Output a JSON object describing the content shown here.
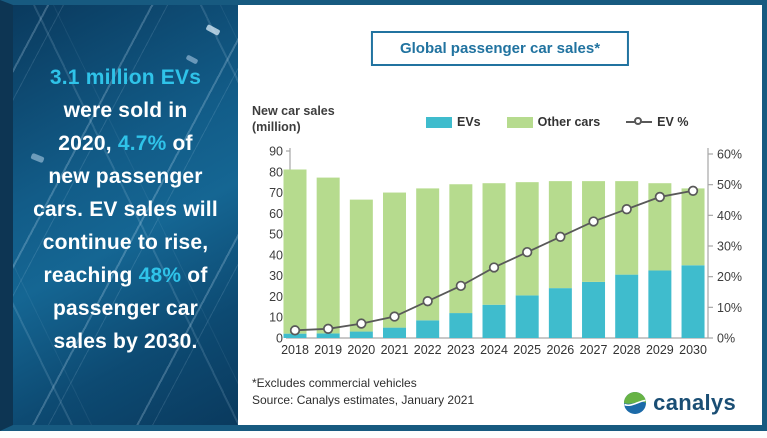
{
  "panel": {
    "accent_color": "#2fc3e9",
    "text_color": "#ffffff",
    "lines": [
      [
        {
          "text": "3.1 million EVs",
          "accent": true
        }
      ],
      [
        {
          "text": "were sold in"
        }
      ],
      [
        {
          "text": "2020, "
        },
        {
          "text": "4.7%",
          "accent": true
        },
        {
          "text": " of"
        }
      ],
      [
        {
          "text": "new passenger"
        }
      ],
      [
        {
          "text": "cars. EV sales will"
        }
      ],
      [
        {
          "text": "continue to rise,"
        }
      ],
      [
        {
          "text": "reaching "
        },
        {
          "text": "48%",
          "accent": true
        },
        {
          "text": " of"
        }
      ],
      [
        {
          "text": "passenger car"
        }
      ],
      [
        {
          "text": "sales by 2030."
        }
      ]
    ]
  },
  "header": {
    "title": "Global passenger car sales*"
  },
  "chart_data": {
    "type": "bar",
    "subtype": "stacked-bars-with-line",
    "title": "Global passenger car sales*",
    "categories": [
      "2018",
      "2019",
      "2020",
      "2021",
      "2022",
      "2023",
      "2024",
      "2025",
      "2026",
      "2027",
      "2028",
      "2029",
      "2030"
    ],
    "series": [
      {
        "name": "EVs",
        "type": "bar",
        "color": "#3fbccd",
        "values": [
          2.1,
          2.2,
          3.1,
          5.0,
          8.5,
          12.0,
          16.0,
          20.5,
          24.0,
          27.0,
          30.5,
          32.5,
          35.0
        ]
      },
      {
        "name": "Other cars",
        "type": "bar",
        "color": "#b6db8e",
        "values": [
          79.0,
          75.0,
          63.5,
          65.0,
          63.5,
          62.0,
          58.5,
          54.5,
          51.5,
          48.5,
          45.0,
          42.0,
          37.0
        ]
      },
      {
        "name": "EV %",
        "type": "line",
        "axis": "right",
        "color": "#595959",
        "marker_fill": "#ffffff",
        "values": [
          2.5,
          3.0,
          4.7,
          7.0,
          12.0,
          17.0,
          23.0,
          28.0,
          33.0,
          38.0,
          42.0,
          46.0,
          48.0
        ]
      }
    ],
    "left_axis": {
      "label_lines": [
        "New car sales",
        "(million)"
      ],
      "min": 0,
      "max": 90,
      "step": 10
    },
    "right_axis": {
      "min": 0,
      "max": 60,
      "step": 10,
      "suffix": "%"
    },
    "legend_position": "top",
    "grid": false,
    "axis_color": "#a6a6a6",
    "tick_text_color": "#3d3d3d"
  },
  "footnotes": {
    "line1": "*Excludes commercial vehicles",
    "line2": "Source: Canalys estimates, January 2021"
  },
  "logo": {
    "text": "canalys"
  }
}
